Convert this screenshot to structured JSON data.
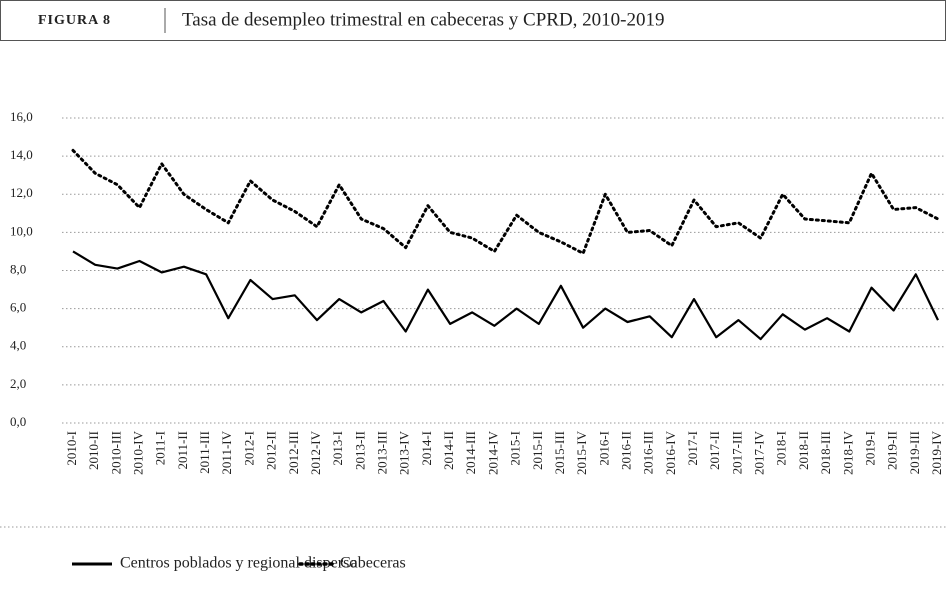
{
  "figure_label": "FIGURA 8",
  "chart_data": {
    "type": "line",
    "title": "Tasa de desempleo trimestral en cabeceras y CPRD, 2010-2019",
    "categories": [
      "2010-I",
      "2010-II",
      "2010-III",
      "2010-IV",
      "2011-I",
      "2011-II",
      "2011-III",
      "2011-IV",
      "2012-I",
      "2012-II",
      "2012-III",
      "2012-IV",
      "2013-I",
      "2013-II",
      "2013-III",
      "2013-IV",
      "2014-I",
      "2014-II",
      "2014-III",
      "2014-IV",
      "2015-I",
      "2015-II",
      "2015-III",
      "2015-IV",
      "2016-I",
      "2016-II",
      "2016-III",
      "2016-IV",
      "2017-I",
      "2017-II",
      "2017-III",
      "2017-IV",
      "2018-I",
      "2018-II",
      "2018-III",
      "2018-IV",
      "2019-I",
      "2019-II",
      "2019-III",
      "2019-IV"
    ],
    "series": [
      {
        "name": "Centros poblados y regional disperso",
        "color": "#000000",
        "line_style": "solid",
        "values": [
          9.0,
          8.3,
          8.1,
          8.5,
          7.9,
          8.2,
          7.8,
          5.5,
          7.5,
          6.5,
          6.7,
          5.4,
          6.5,
          5.8,
          6.4,
          4.8,
          7.0,
          5.2,
          5.8,
          5.1,
          6.0,
          5.2,
          7.2,
          5.0,
          6.0,
          5.3,
          5.6,
          4.5,
          6.5,
          4.5,
          5.4,
          4.4,
          5.7,
          4.9,
          5.5,
          4.8,
          7.1,
          5.9,
          7.8,
          5.4
        ]
      },
      {
        "name": "Cabeceras",
        "color": "#000000",
        "line_style": "dotted",
        "values": [
          14.3,
          13.1,
          12.5,
          11.3,
          13.6,
          12.0,
          11.2,
          10.5,
          12.7,
          11.7,
          11.1,
          10.3,
          12.5,
          10.7,
          10.2,
          9.2,
          11.4,
          10.0,
          9.7,
          9.0,
          10.9,
          10.0,
          9.5,
          8.9,
          12.0,
          10.0,
          10.1,
          9.3,
          11.7,
          10.3,
          10.5,
          9.7,
          12.0,
          10.7,
          10.6,
          10.5,
          13.1,
          11.2,
          11.3,
          10.7
        ]
      }
    ],
    "ylim": [
      0,
      16
    ],
    "yticks": [
      {
        "value": 0,
        "label": "0,0"
      },
      {
        "value": 2,
        "label": "2,0"
      },
      {
        "value": 4,
        "label": "4,0"
      },
      {
        "value": 6,
        "label": "6,0"
      },
      {
        "value": 8,
        "label": "8,0"
      },
      {
        "value": 10,
        "label": "10,0"
      },
      {
        "value": 12,
        "label": "12,0"
      },
      {
        "value": 14,
        "label": "14,0"
      },
      {
        "value": 16,
        "label": "16,0"
      }
    ],
    "grid": true
  }
}
